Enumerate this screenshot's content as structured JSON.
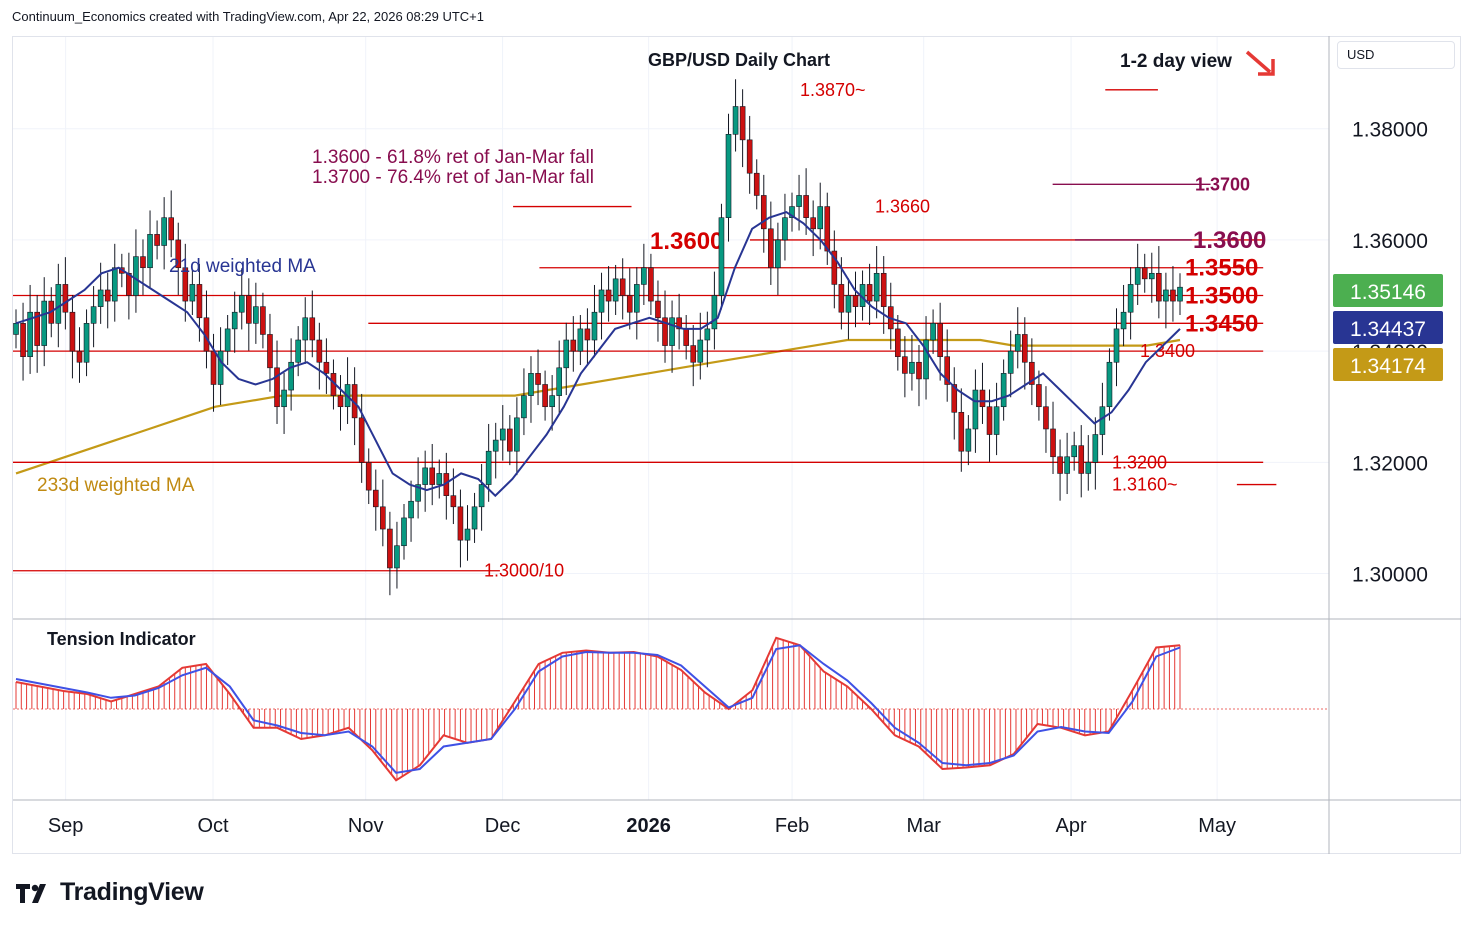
{
  "header": {
    "text": "Continuum_Economics created with TradingView.com, Apr 22, 2026 08:29 UTC+1"
  },
  "currency": "USD",
  "footer": {
    "brand": "TradingView"
  },
  "colors": {
    "bull": "#089981",
    "bear": "#cc1111",
    "level": "#d40000",
    "fib": "#880e4f",
    "ma21": "#283593",
    "ma233": "#c49a17",
    "tension": "#e53935",
    "tension_signal": "#3f51e5",
    "price_tag": "#4caf50"
  },
  "chart_data": [
    {
      "type": "candlestick",
      "title": "GBP/USD Daily Chart",
      "view": "1-2 day view",
      "view_direction": "down",
      "x_ticks": [
        "Sep",
        "Oct",
        "Nov",
        "Dec",
        "2026",
        "Feb",
        "Mar",
        "Apr",
        "May"
      ],
      "y_ticks": [
        "1.30000",
        "1.32000",
        "1.34000",
        "1.36000",
        "1.38000"
      ],
      "ylim": [
        1.292,
        1.3965
      ],
      "price_tags": [
        {
          "label": "1.35146",
          "value": 1.35146,
          "color": "#4caf50"
        },
        {
          "label": "1.34437",
          "value": 1.34437,
          "color": "#283593"
        },
        {
          "label": "1.34174",
          "value": 1.34174,
          "color": "#c49a17"
        }
      ],
      "levels": [
        {
          "label": "1.3870~",
          "value": 1.387,
          "from": 0.83,
          "to": 0.87
        },
        {
          "label": "1.3700",
          "value": 1.37,
          "from": 0.79,
          "to": 0.91
        },
        {
          "label": "1.3660",
          "value": 1.366,
          "from": 0.38,
          "to": 0.47
        },
        {
          "label": "1.3600",
          "value": 1.36,
          "from": 0.56,
          "to": 0.95
        },
        {
          "label": "1.3550",
          "value": 1.355,
          "from": 0.4,
          "to": 0.95
        },
        {
          "label": "1.3500",
          "value": 1.35,
          "from": 0.0,
          "to": 0.95
        },
        {
          "label": "1.3450",
          "value": 1.345,
          "from": 0.27,
          "to": 0.95
        },
        {
          "label": "1.3400",
          "value": 1.34,
          "from": 0.0,
          "to": 0.95
        },
        {
          "label": "1.3200",
          "value": 1.32,
          "from": 0.0,
          "to": 0.95
        },
        {
          "label": "1.3160~",
          "value": 1.316,
          "from": 0.93,
          "to": 0.96
        },
        {
          "label": "1.3000/10",
          "value": 1.3005,
          "from": 0.0,
          "to": 0.37
        }
      ],
      "annotations": [
        "1.3600 - 61.8% ret of Jan-Mar fall",
        "1.3700 - 76.4% ret of Jan-Mar fall",
        "21d weighted MA",
        "233d weighted MA"
      ],
      "ohlc_close_path": [
        1.345,
        1.339,
        1.347,
        1.341,
        1.349,
        1.345,
        1.352,
        1.347,
        1.34,
        1.338,
        1.345,
        1.348,
        1.351,
        1.349,
        1.355,
        1.354,
        1.35,
        1.357,
        1.355,
        1.361,
        1.359,
        1.364,
        1.36,
        1.355,
        1.349,
        1.352,
        1.346,
        1.34,
        1.334,
        1.34,
        1.344,
        1.347,
        1.35,
        1.345,
        1.348,
        1.343,
        1.337,
        1.33,
        1.333,
        1.338,
        1.342,
        1.346,
        1.342,
        1.338,
        1.336,
        1.332,
        1.33,
        1.334,
        1.328,
        1.32,
        1.315,
        1.312,
        1.308,
        1.301,
        1.305,
        1.31,
        1.313,
        1.316,
        1.319,
        1.316,
        1.318,
        1.314,
        1.312,
        1.306,
        1.308,
        1.312,
        1.316,
        1.322,
        1.324,
        1.326,
        1.322,
        1.328,
        1.332,
        1.336,
        1.334,
        1.33,
        1.332,
        1.337,
        1.342,
        1.34,
        1.344,
        1.342,
        1.347,
        1.351,
        1.349,
        1.353,
        1.35,
        1.347,
        1.352,
        1.355,
        1.349,
        1.346,
        1.341,
        1.346,
        1.344,
        1.341,
        1.338,
        1.342,
        1.344,
        1.35,
        1.364,
        1.379,
        1.384,
        1.378,
        1.372,
        1.368,
        1.362,
        1.355,
        1.36,
        1.364,
        1.366,
        1.368,
        1.364,
        1.362,
        1.366,
        1.358,
        1.352,
        1.347,
        1.35,
        1.348,
        1.352,
        1.349,
        1.354,
        1.348,
        1.344,
        1.339,
        1.336,
        1.338,
        1.335,
        1.342,
        1.345,
        1.339,
        1.334,
        1.329,
        1.322,
        1.326,
        1.333,
        1.33,
        1.325,
        1.33,
        1.336,
        1.34,
        1.343,
        1.338,
        1.334,
        1.33,
        1.326,
        1.321,
        1.318,
        1.321,
        1.323,
        1.318,
        1.32,
        1.325,
        1.33,
        1.338,
        1.344,
        1.347,
        1.352,
        1.355,
        1.353,
        1.354,
        1.349,
        1.351,
        1.349,
        1.3515
      ],
      "ma21_path": [
        1.345,
        1.346,
        1.347,
        1.349,
        1.351,
        1.354,
        1.355,
        1.353,
        1.351,
        1.349,
        1.347,
        1.343,
        1.338,
        1.335,
        1.334,
        1.335,
        1.337,
        1.338,
        1.336,
        1.333,
        1.33,
        1.324,
        1.318,
        1.316,
        1.315,
        1.316,
        1.318,
        1.317,
        1.314,
        1.317,
        1.321,
        1.325,
        1.33,
        1.336,
        1.34,
        1.344,
        1.345,
        1.346,
        1.345,
        1.344,
        1.344,
        1.346,
        1.355,
        1.362,
        1.364,
        1.365,
        1.363,
        1.36,
        1.356,
        1.351,
        1.348,
        1.346,
        1.345,
        1.341,
        1.336,
        1.333,
        1.331,
        1.331,
        1.332,
        1.334,
        1.336,
        1.333,
        1.33,
        1.327,
        1.329,
        1.333,
        1.338,
        1.341,
        1.344
      ],
      "ma233_path": [
        1.318,
        1.32,
        1.322,
        1.324,
        1.326,
        1.328,
        1.33,
        1.331,
        1.332,
        1.332,
        1.332,
        1.332,
        1.332,
        1.332,
        1.332,
        1.332,
        1.333,
        1.334,
        1.335,
        1.336,
        1.337,
        1.338,
        1.339,
        1.34,
        1.341,
        1.342,
        1.342,
        1.342,
        1.342,
        1.342,
        1.341,
        1.341,
        1.341,
        1.341,
        1.341,
        1.342
      ]
    },
    {
      "type": "histogram",
      "title": "Tension Indicator",
      "ylim": [
        -1.0,
        1.0
      ],
      "values": [
        0.36,
        0.3,
        0.24,
        0.2,
        0.1,
        0.2,
        0.3,
        0.55,
        0.6,
        0.2,
        -0.25,
        -0.25,
        -0.4,
        -0.35,
        -0.25,
        -0.55,
        -0.95,
        -0.75,
        -0.35,
        -0.45,
        -0.4,
        0.1,
        0.6,
        0.75,
        0.78,
        0.75,
        0.76,
        0.7,
        0.52,
        0.22,
        0.0,
        0.25,
        0.95,
        0.85,
        0.5,
        0.3,
        0.0,
        -0.35,
        -0.5,
        -0.8,
        -0.78,
        -0.75,
        -0.6,
        -0.2,
        -0.25,
        -0.35,
        -0.3,
        0.25,
        0.82,
        0.85
      ],
      "signal": [
        0.4,
        0.34,
        0.28,
        0.22,
        0.15,
        0.18,
        0.28,
        0.45,
        0.55,
        0.3,
        -0.15,
        -0.22,
        -0.32,
        -0.35,
        -0.3,
        -0.5,
        -0.85,
        -0.8,
        -0.5,
        -0.45,
        -0.4,
        0.0,
        0.5,
        0.7,
        0.76,
        0.75,
        0.75,
        0.72,
        0.58,
        0.3,
        0.02,
        0.15,
        0.8,
        0.85,
        0.6,
        0.38,
        0.08,
        -0.25,
        -0.45,
        -0.72,
        -0.75,
        -0.72,
        -0.62,
        -0.3,
        -0.24,
        -0.3,
        -0.32,
        0.1,
        0.7,
        0.82
      ]
    }
  ]
}
